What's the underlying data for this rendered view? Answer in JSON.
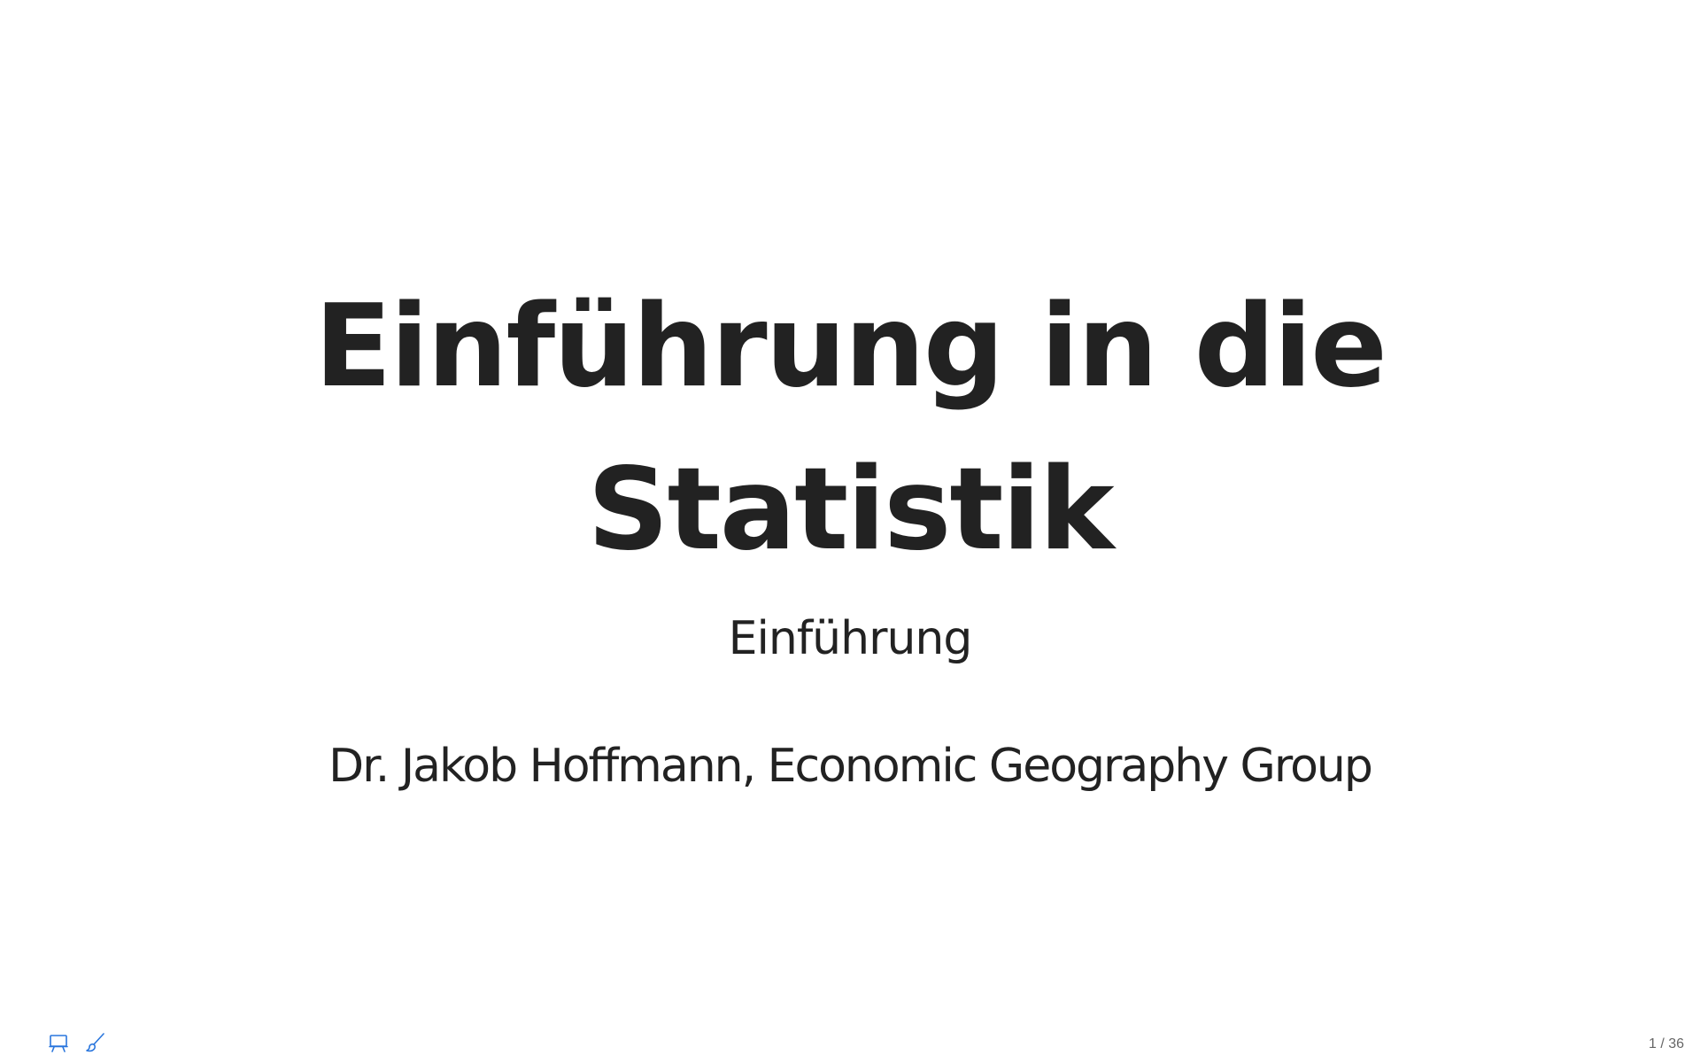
{
  "slide": {
    "title": "Einführung in die Statistik",
    "subtitle": "Einführung",
    "author": "Dr. Jakob Hoffmann, Economic Geography Group"
  },
  "toolbar": {
    "icons": [
      "presentation-icon",
      "brush-icon"
    ],
    "accent_color": "#2a76dd"
  },
  "slide_number": "1 / 36",
  "colors": {
    "text": "#222222",
    "background": "#ffffff"
  }
}
